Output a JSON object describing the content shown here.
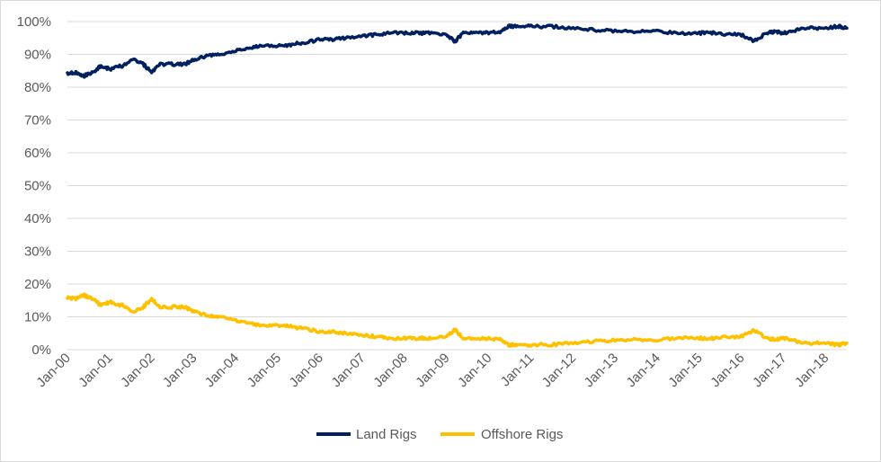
{
  "chart_data": {
    "type": "line",
    "title": "",
    "xlabel": "",
    "ylabel": "",
    "ylim": [
      0,
      100
    ],
    "y_unit": "%",
    "y_ticks": [
      {
        "value": 0,
        "label": "0%"
      },
      {
        "value": 10,
        "label": "10%"
      },
      {
        "value": 20,
        "label": "20%"
      },
      {
        "value": 30,
        "label": "30%"
      },
      {
        "value": 40,
        "label": "40%"
      },
      {
        "value": 50,
        "label": "50%"
      },
      {
        "value": 60,
        "label": "60%"
      },
      {
        "value": 70,
        "label": "70%"
      },
      {
        "value": 80,
        "label": "80%"
      },
      {
        "value": 90,
        "label": "90%"
      },
      {
        "value": 100,
        "label": "100%"
      }
    ],
    "x_ticks": [
      {
        "value": 2000,
        "label": "Jan-00"
      },
      {
        "value": 2001,
        "label": "Jan-01"
      },
      {
        "value": 2002,
        "label": "Jan-02"
      },
      {
        "value": 2003,
        "label": "Jan-03"
      },
      {
        "value": 2004,
        "label": "Jan-04"
      },
      {
        "value": 2005,
        "label": "Jan-05"
      },
      {
        "value": 2006,
        "label": "Jan-06"
      },
      {
        "value": 2007,
        "label": "Jan-07"
      },
      {
        "value": 2008,
        "label": "Jan-08"
      },
      {
        "value": 2009,
        "label": "Jan-09"
      },
      {
        "value": 2010,
        "label": "Jan-10"
      },
      {
        "value": 2011,
        "label": "Jan-11"
      },
      {
        "value": 2012,
        "label": "Jan-12"
      },
      {
        "value": 2013,
        "label": "Jan-13"
      },
      {
        "value": 2014,
        "label": "Jan-14"
      },
      {
        "value": 2015,
        "label": "Jan-15"
      },
      {
        "value": 2016,
        "label": "Jan-16"
      },
      {
        "value": 2017,
        "label": "Jan-17"
      },
      {
        "value": 2018,
        "label": "Jan-18"
      }
    ],
    "xlim": [
      2000,
      2018.5
    ],
    "grid": true,
    "legend_position": "bottom",
    "series": [
      {
        "name": "Land Rigs",
        "color": "#002060",
        "x": [
          2000.0,
          2000.2,
          2000.4,
          2000.6,
          2000.8,
          2001.0,
          2001.3,
          2001.6,
          2001.8,
          2002.0,
          2002.2,
          2002.5,
          2002.8,
          2003.0,
          2003.3,
          2003.6,
          2004.0,
          2004.3,
          2004.6,
          2005.0,
          2005.3,
          2005.6,
          2006.0,
          2006.3,
          2006.6,
          2007.0,
          2007.3,
          2007.6,
          2008.0,
          2008.3,
          2008.6,
          2009.0,
          2009.2,
          2009.4,
          2009.7,
          2010.0,
          2010.3,
          2010.45,
          2010.7,
          2011.0,
          2011.5,
          2012.0,
          2012.5,
          2013.0,
          2013.5,
          2014.0,
          2014.5,
          2015.0,
          2015.3,
          2015.6,
          2016.0,
          2016.3,
          2016.6,
          2016.8,
          2017.0,
          2017.3,
          2017.6,
          2018.0,
          2018.3,
          2018.5
        ],
        "values": [
          84,
          84.5,
          83.5,
          84.5,
          86.5,
          85.5,
          86.5,
          88.5,
          87,
          84.5,
          87,
          87,
          87,
          88.5,
          89.5,
          90,
          91,
          92,
          92.5,
          92.5,
          93,
          93.5,
          94.5,
          94.5,
          95,
          95.5,
          96,
          96.5,
          96.5,
          96.5,
          96.5,
          96,
          94,
          96.5,
          96.5,
          96.5,
          97,
          98.5,
          98.5,
          98.5,
          98.5,
          98,
          97.5,
          97,
          97,
          97,
          96.5,
          96.5,
          96.5,
          96,
          96,
          94,
          96.5,
          97,
          96.5,
          97.5,
          98,
          98,
          98.5,
          98
        ]
      },
      {
        "name": "Offshore Rigs",
        "color": "#FFC000",
        "x": [
          2000.0,
          2000.2,
          2000.4,
          2000.6,
          2000.8,
          2001.0,
          2001.3,
          2001.6,
          2001.8,
          2002.0,
          2002.2,
          2002.5,
          2002.8,
          2003.0,
          2003.3,
          2003.6,
          2004.0,
          2004.3,
          2004.6,
          2005.0,
          2005.3,
          2005.6,
          2006.0,
          2006.3,
          2006.6,
          2007.0,
          2007.3,
          2007.6,
          2008.0,
          2008.3,
          2008.6,
          2009.0,
          2009.2,
          2009.4,
          2009.7,
          2010.0,
          2010.3,
          2010.45,
          2010.7,
          2011.0,
          2011.5,
          2012.0,
          2012.5,
          2013.0,
          2013.5,
          2014.0,
          2014.5,
          2015.0,
          2015.3,
          2015.6,
          2016.0,
          2016.3,
          2016.6,
          2016.8,
          2017.0,
          2017.3,
          2017.6,
          2018.0,
          2018.3,
          2018.5
        ],
        "values": [
          16,
          15.5,
          16.5,
          15.5,
          13.5,
          14.5,
          13.5,
          11.5,
          13,
          15.5,
          13,
          13,
          13,
          11.5,
          10.5,
          10,
          9,
          8,
          7.5,
          7.5,
          7,
          6.5,
          5.5,
          5.5,
          5,
          4.5,
          4,
          3.5,
          3.5,
          3.5,
          3.5,
          4,
          6,
          3.5,
          3.5,
          3.5,
          3,
          1.5,
          1.5,
          1.5,
          1.5,
          2,
          2.5,
          3,
          3,
          3,
          3.5,
          3.5,
          3.5,
          4,
          4,
          6,
          3.5,
          3,
          3.5,
          2.5,
          2,
          2,
          1.5,
          2
        ]
      }
    ]
  }
}
